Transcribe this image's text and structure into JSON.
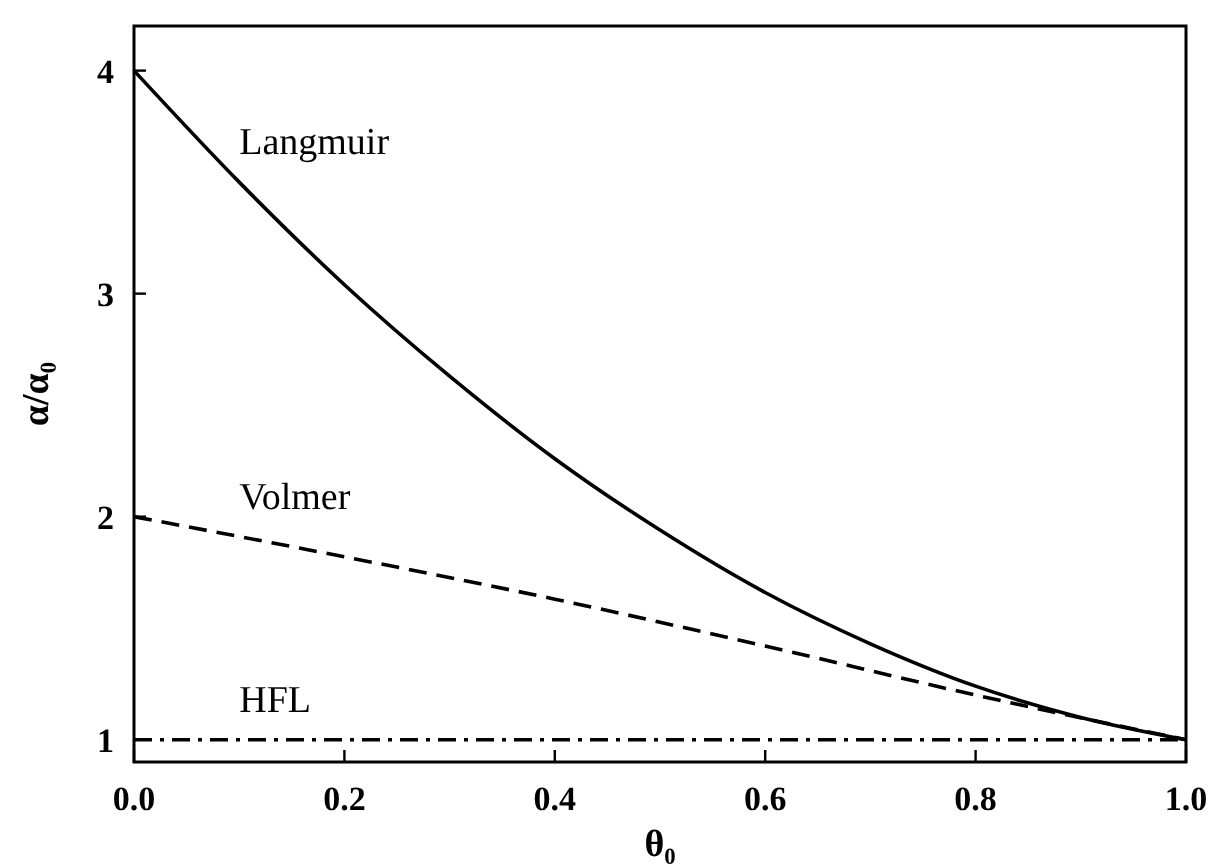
{
  "chart_data": {
    "type": "line",
    "xlabel": "θ₀",
    "ylabel": "α/α₀",
    "xlim": [
      0,
      1
    ],
    "ylim": [
      0.9,
      4.2
    ],
    "xticks": [
      {
        "value": 0,
        "label": "0.0"
      },
      0.2,
      0.4,
      0.6,
      0.8,
      {
        "value": 1,
        "label": "1.0"
      }
    ],
    "yticks": [
      1,
      2,
      3,
      4
    ],
    "grid": false,
    "marker": "none",
    "series": [
      {
        "name": "Langmuir",
        "color": "#000000",
        "line_style": "solid",
        "x": [
          0,
          0.1,
          0.2,
          0.3,
          0.4,
          0.5,
          0.6,
          0.7,
          0.8,
          0.9,
          1.0
        ],
        "values": [
          4,
          3.5,
          3.04,
          2.63,
          2.26,
          1.94,
          1.66,
          1.43,
          1.24,
          1.1,
          1.0
        ]
      },
      {
        "name": "Volmer",
        "color": "#000000",
        "line_style": "dashed",
        "x": [
          0,
          0.2,
          0.4,
          0.6,
          0.8,
          1.0
        ],
        "values": [
          2,
          1.82,
          1.63,
          1.42,
          1.2,
          1.0
        ]
      },
      {
        "name": "HFL",
        "color": "#000000",
        "line_style": "dashdot",
        "x": [
          0,
          1
        ],
        "values": [
          1,
          1
        ]
      }
    ]
  }
}
